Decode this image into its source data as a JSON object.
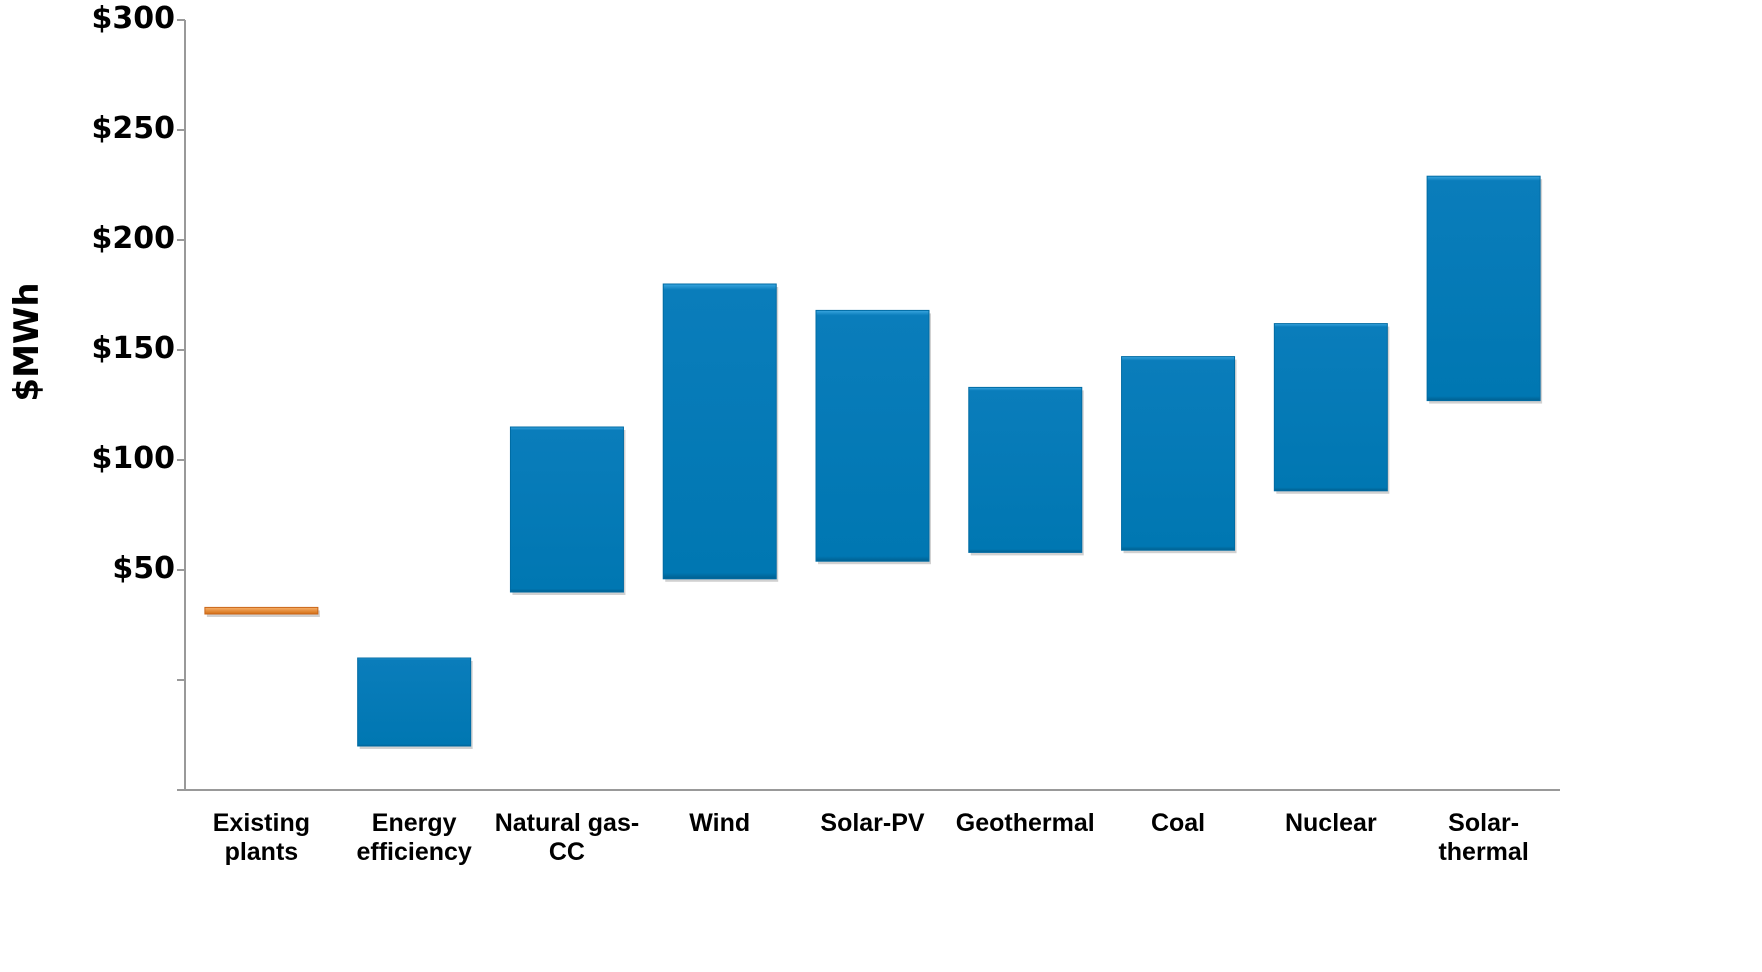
{
  "chart_data": {
    "type": "bar",
    "subtype": "floating-range",
    "title": "",
    "xlabel": "",
    "ylabel": "$MWh",
    "ylim": [
      -50,
      300
    ],
    "grid": false,
    "legend": "none",
    "y_tick_values": [
      0,
      50,
      100,
      150,
      200,
      250,
      300
    ],
    "y_tick_labels": [
      "",
      "$50",
      "$100",
      "$150",
      "$200",
      "$250",
      "$300"
    ],
    "categories": [
      "Existing plants",
      "Energy efficiency",
      "Natural gas-CC",
      "Wind",
      "Solar-PV",
      "Geothermal",
      "Coal",
      "Nuclear",
      "Solar-thermal"
    ],
    "category_lines": [
      [
        "Existing",
        "plants"
      ],
      [
        "Energy",
        "efficiency"
      ],
      [
        "Natural gas-",
        "CC"
      ],
      [
        "Wind"
      ],
      [
        "Solar-PV"
      ],
      [
        "Geothermal"
      ],
      [
        "Coal"
      ],
      [
        "Nuclear"
      ],
      [
        "Solar-",
        "thermal"
      ]
    ],
    "ranges": [
      {
        "low": 30,
        "high": 33
      },
      {
        "low": -30,
        "high": 10
      },
      {
        "low": 40,
        "high": 115
      },
      {
        "low": 46,
        "high": 180
      },
      {
        "low": 54,
        "high": 168
      },
      {
        "low": 58,
        "high": 133
      },
      {
        "low": 59,
        "high": 147
      },
      {
        "low": 86,
        "high": 162
      },
      {
        "low": 127,
        "high": 229
      }
    ],
    "colors": {
      "bar": "#0077b2",
      "bar_top": "#2b9ad6",
      "existing": "#e8882c",
      "axis": "#999999"
    }
  }
}
